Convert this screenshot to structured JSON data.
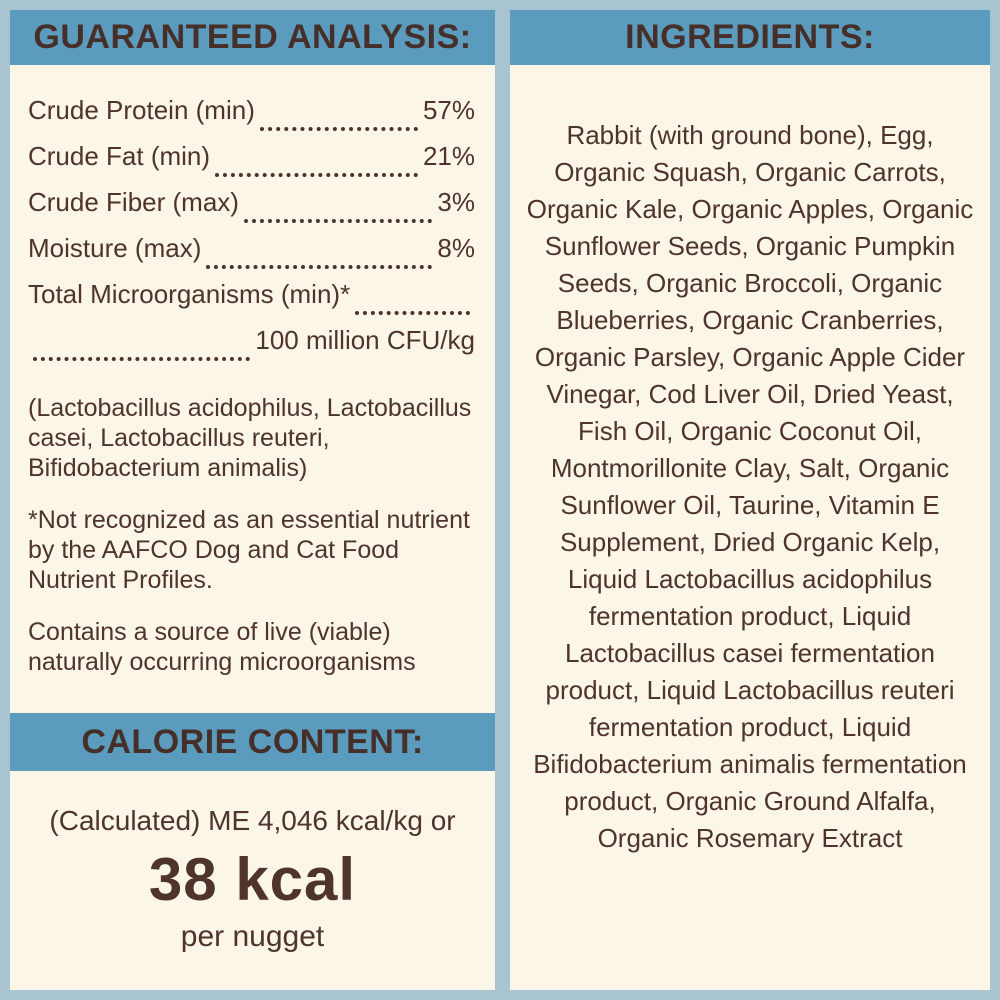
{
  "colors": {
    "bg": "#a9c4d1",
    "accent": "#5b9cbe",
    "panel": "#fbf6e7",
    "text": "#4e342b"
  },
  "guaranteed_analysis": {
    "title": "GUARANTEED ANALYSIS:",
    "rows": [
      {
        "label": "Crude Protein (min)",
        "value": "57%"
      },
      {
        "label": "Crude Fat (min)",
        "value": "21%"
      },
      {
        "label": "Crude Fiber (max)",
        "value": "3%"
      },
      {
        "label": "Moisture (max)",
        "value": "8%"
      },
      {
        "label": "Total Microorganisms (min)*",
        "value": ""
      }
    ],
    "microorganisms_value": "100 million CFU/kg",
    "notes": [
      "(Lactobacillus acidophilus, Lactobacillus casei, Lactobacillus reuteri, Bifidobacterium animalis)",
      "*Not recognized as an essential nutrient by the AAFCO Dog and Cat Food Nutrient Profiles.",
      "Contains a source of live (viable) naturally occurring microorganisms"
    ]
  },
  "calorie_content": {
    "title": "CALORIE CONTENT:",
    "line1": "(Calculated) ME 4,046 kcal/kg or",
    "value": "38 kcal",
    "unit": "per nugget"
  },
  "ingredients": {
    "title": "INGREDIENTS:",
    "text": "Rabbit (with ground bone), Egg, Organic Squash, Organic Carrots, Organic Kale, Organic Apples, Organic Sunflower Seeds, Organic Pumpkin Seeds, Organic Broccoli, Organic Blueberries, Organic Cranberries, Organic Parsley, Organic Apple Cider Vinegar, Cod Liver Oil, Dried Yeast, Fish Oil, Organic Coconut Oil, Montmorillonite Clay, Salt, Organic Sunflower Oil, Taurine, Vitamin E Supplement, Dried Organic Kelp, Liquid Lactobacillus acidophilus fermentation product, Liquid Lactobacillus casei fermentation product, Liquid Lactobacillus reuteri fermentation product, Liquid Bifidobacterium animalis fermentation product, Organic Ground Alfalfa, Organic Rosemary Extract"
  }
}
